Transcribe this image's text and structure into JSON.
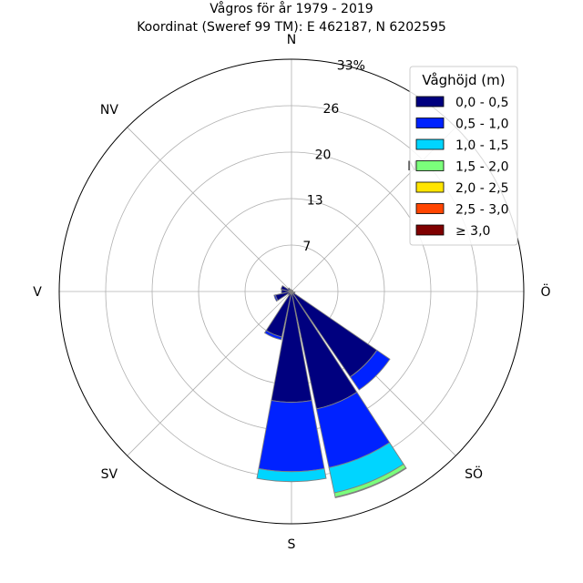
{
  "chart_data": {
    "type": "windrose",
    "title_line1": "Vågros för år 1979 - 2019",
    "title_line2": "Koordinat (Sweref 99 TM): E 462187, N 6202595",
    "directions": [
      "N",
      "NO",
      "Ö",
      "SÖ",
      "S",
      "SV",
      "V",
      "NV"
    ],
    "direction_labels": [
      "N",
      "NO",
      "Ö",
      "SÖ",
      "S",
      "SV",
      "V",
      "NV"
    ],
    "radial_ticks": [
      "7",
      "13",
      "20",
      "26",
      "33%"
    ],
    "radial_tick_values": [
      6.5,
      13,
      19.5,
      26,
      32.5
    ],
    "rmax": 32.5,
    "grid": true,
    "legend_title": "Våghöjd (m)",
    "legend_position": "top-right",
    "bins": [
      {
        "label": "0,0 - 0,5",
        "color": "#00007f"
      },
      {
        "label": "0,5 - 1,0",
        "color": "#0022ff"
      },
      {
        "label": "1,0 - 1,5",
        "color": "#00d5ff"
      },
      {
        "label": "1,5 - 2,0",
        "color": "#7bff7b"
      },
      {
        "label": "2,0 - 2,5",
        "color": "#ffe500"
      },
      {
        "label": "2,5 - 3,0",
        "color": "#ff4500"
      },
      {
        "label": "≥ 3,0",
        "color": "#7f0000"
      }
    ],
    "sectors": [
      {
        "angle": 0,
        "values": [
          0.2,
          0,
          0,
          0,
          0,
          0,
          0
        ]
      },
      {
        "angle": 22.5,
        "values": [
          0.1,
          0,
          0,
          0,
          0,
          0,
          0
        ]
      },
      {
        "angle": 45,
        "values": [
          0.2,
          0,
          0,
          0,
          0,
          0,
          0
        ]
      },
      {
        "angle": 67.5,
        "values": [
          0.2,
          0,
          0,
          0,
          0,
          0,
          0
        ]
      },
      {
        "angle": 90,
        "values": [
          0.2,
          0,
          0,
          0,
          0,
          0,
          0
        ]
      },
      {
        "angle": 112.5,
        "values": [
          0.5,
          0,
          0,
          0,
          0,
          0,
          0
        ]
      },
      {
        "angle": 135,
        "values": [
          14.5,
          2.2,
          0,
          0,
          0,
          0,
          0
        ]
      },
      {
        "angle": 157.5,
        "values": [
          16.8,
          8.4,
          3.6,
          0.6,
          0.1,
          0,
          0
        ]
      },
      {
        "angle": 180,
        "values": [
          15.5,
          9.7,
          1.4,
          0,
          0,
          0,
          0
        ]
      },
      {
        "angle": 202.5,
        "values": [
          6.5,
          0.4,
          0,
          0,
          0,
          0,
          0
        ]
      },
      {
        "angle": 225,
        "values": [
          0.6,
          0,
          0,
          0,
          0,
          0,
          0
        ]
      },
      {
        "angle": 247.5,
        "values": [
          2.3,
          0.2,
          0,
          0,
          0,
          0,
          0
        ]
      },
      {
        "angle": 270,
        "values": [
          1.4,
          0,
          0,
          0,
          0,
          0,
          0
        ]
      },
      {
        "angle": 292.5,
        "values": [
          1.5,
          0,
          0,
          0,
          0,
          0,
          0
        ]
      },
      {
        "angle": 315,
        "values": [
          0.6,
          0,
          0,
          0,
          0,
          0,
          0
        ]
      },
      {
        "angle": 337.5,
        "values": [
          0.3,
          0,
          0,
          0,
          0,
          0,
          0
        ]
      }
    ]
  }
}
